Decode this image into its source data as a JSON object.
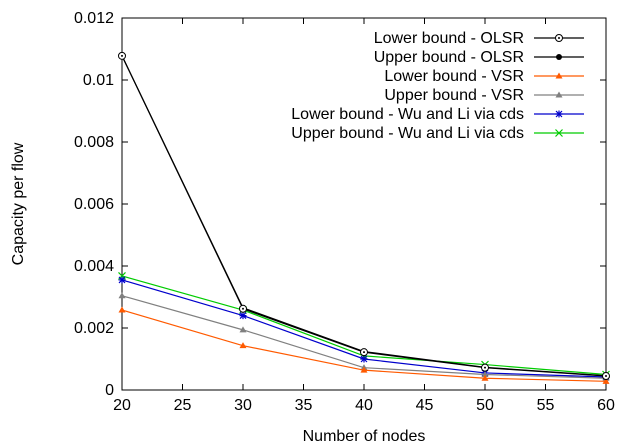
{
  "chart_data": {
    "type": "line",
    "title": "",
    "xlabel": "Number of nodes",
    "ylabel": "Capacity per flow",
    "xlim": [
      20,
      60
    ],
    "ylim": [
      0,
      0.012
    ],
    "xticks": [
      "20",
      "25",
      "30",
      "35",
      "40",
      "45",
      "50",
      "55",
      "60"
    ],
    "yticks": [
      "0",
      "0.002",
      "0.004",
      "0.006",
      "0.008",
      "0.01",
      "0.012"
    ],
    "grid": false,
    "legend_position": "top-right",
    "x": [
      20,
      30,
      40,
      50,
      60
    ],
    "series": [
      {
        "name": "Lower bound - OLSR",
        "color": "#000000",
        "marker": "open-circle-dot",
        "values": [
          0.01078,
          0.00262,
          0.00122,
          0.00072,
          0.00045
        ]
      },
      {
        "name": "Upper bound - OLSR",
        "color": "#000000",
        "marker": "filled-circle",
        "values": [
          0.01078,
          0.00265,
          0.00124,
          0.00073,
          0.00046
        ]
      },
      {
        "name": "Lower bound - VSR",
        "color": "#ff5a00",
        "marker": "triangle",
        "values": [
          0.00258,
          0.00143,
          0.00064,
          0.00038,
          0.00028
        ]
      },
      {
        "name": "Upper bound - VSR",
        "color": "#808080",
        "marker": "triangle",
        "values": [
          0.00304,
          0.00194,
          0.00072,
          0.0005,
          0.00038
        ]
      },
      {
        "name": "Lower bound - Wu and Li via cds",
        "color": "#0000cc",
        "marker": "star",
        "values": [
          0.00355,
          0.0024,
          0.001,
          0.00055,
          0.00042
        ]
      },
      {
        "name": "Upper bound - Wu and Li via cds",
        "color": "#00cc00",
        "marker": "x",
        "values": [
          0.00368,
          0.00258,
          0.0011,
          0.00082,
          0.0005
        ]
      }
    ]
  }
}
